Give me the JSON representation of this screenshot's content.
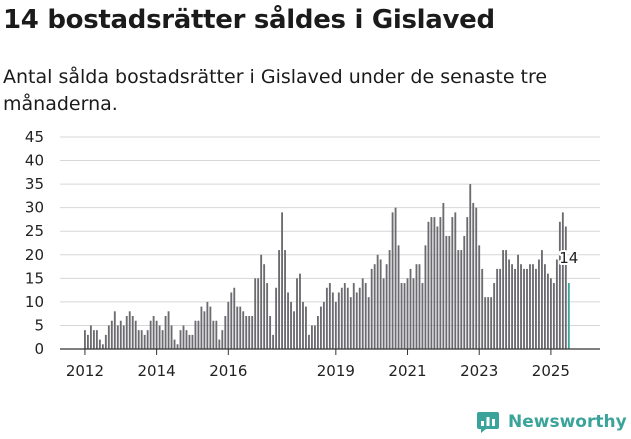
{
  "header": {
    "title": "14 bostadsrätter såldes i Gislaved",
    "subtitle": "Antal sålda bostadsrätter i Gislaved under de senaste tre månaderna."
  },
  "brand": {
    "name": "Newsworthy",
    "icon": "newsworthy-logo-icon"
  },
  "colors": {
    "bar": "#6b6b70",
    "highlight": "#3aa39a",
    "grid": "#d7d7d7",
    "axis": "#333333"
  },
  "chart_data": {
    "type": "bar",
    "title": "14 bostadsrätter såldes i Gislaved",
    "subtitle": "Antal sålda bostadsrätter i Gislaved under de senaste tre månaderna.",
    "xlabel": "",
    "ylabel": "",
    "ylim": [
      0,
      45
    ],
    "yticks": [
      0,
      5,
      10,
      15,
      20,
      25,
      30,
      35,
      40,
      45
    ],
    "xticks": [
      {
        "label": "2012",
        "year": 2012
      },
      {
        "label": "2014",
        "year": 2014
      },
      {
        "label": "2016",
        "year": 2016
      },
      {
        "label": "2019",
        "year": 2019
      },
      {
        "label": "2021",
        "year": 2021
      },
      {
        "label": "2023",
        "year": 2023
      },
      {
        "label": "2025",
        "year": 2025
      }
    ],
    "x_start": "2012-01",
    "frequency": "monthly",
    "grid": true,
    "legend": "none",
    "highlight_last": true,
    "annotation": {
      "label": "14",
      "value": 14,
      "position": "last"
    },
    "values": [
      4,
      3,
      5,
      4,
      4,
      2,
      1,
      3,
      5,
      6,
      8,
      5,
      6,
      5,
      7,
      8,
      7,
      6,
      4,
      4,
      3,
      4,
      6,
      7,
      6,
      5,
      4,
      7,
      8,
      5,
      2,
      1,
      4,
      5,
      4,
      3,
      3,
      6,
      6,
      9,
      8,
      10,
      9,
      6,
      6,
      2,
      4,
      7,
      10,
      12,
      13,
      9,
      9,
      8,
      7,
      7,
      7,
      15,
      15,
      20,
      18,
      14,
      7,
      3,
      13,
      21,
      29,
      21,
      12,
      10,
      8,
      15,
      16,
      10,
      9,
      3,
      5,
      5,
      7,
      9,
      10,
      13,
      14,
      12,
      10,
      12,
      13,
      14,
      13,
      11,
      14,
      12,
      13,
      15,
      14,
      11,
      17,
      18,
      20,
      19,
      15,
      18,
      21,
      29,
      30,
      22,
      14,
      14,
      15,
      17,
      15,
      18,
      18,
      14,
      22,
      27,
      28,
      28,
      26,
      28,
      31,
      24,
      24,
      28,
      29,
      21,
      21,
      24,
      28,
      35,
      31,
      30,
      22,
      17,
      11,
      11,
      11,
      14,
      17,
      17,
      21,
      21,
      19,
      18,
      17,
      20,
      18,
      17,
      17,
      18,
      18,
      17,
      19,
      21,
      18,
      16,
      15,
      14,
      19,
      27,
      29,
      26,
      14
    ]
  }
}
